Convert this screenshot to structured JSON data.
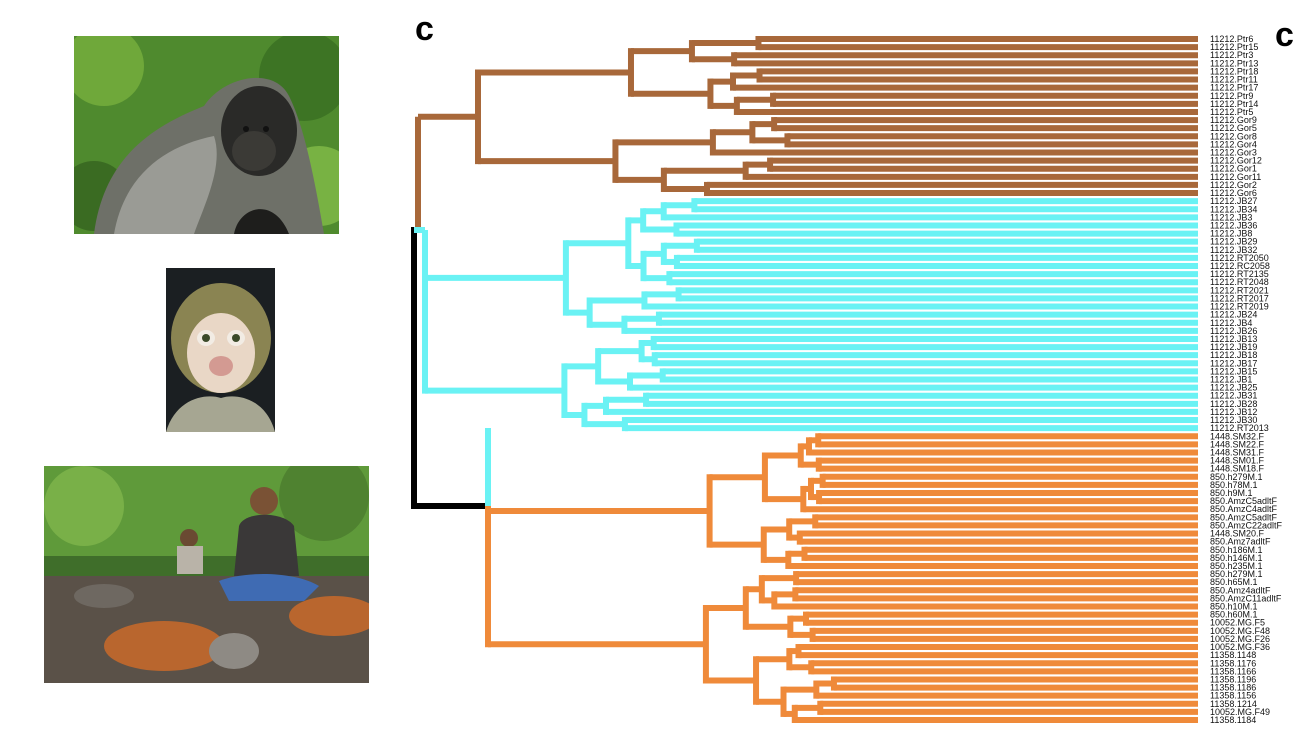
{
  "panel_label": "c",
  "next_panel_label": "c",
  "photos": [
    {
      "name": "gorilla-photo"
    },
    {
      "name": "macaque-photo"
    },
    {
      "name": "forest-people-photo"
    }
  ],
  "colors": {
    "gorilla_chimp_clade": "#a8683a",
    "macaque_clade": "#6af2f4",
    "human_clade": "#ef8a3a",
    "root": "#000000"
  },
  "tips": [
    {
      "label": "11212.Ptr6",
      "clade": "ape"
    },
    {
      "label": "11212.Ptr15",
      "clade": "ape"
    },
    {
      "label": "11212.Ptr3",
      "clade": "ape"
    },
    {
      "label": "11212.Ptr13",
      "clade": "ape"
    },
    {
      "label": "11212.Ptr18",
      "clade": "ape"
    },
    {
      "label": "11212.Ptr11",
      "clade": "ape"
    },
    {
      "label": "11212.Ptr17",
      "clade": "ape"
    },
    {
      "label": "11212.Ptr9",
      "clade": "ape"
    },
    {
      "label": "11212.Ptr14",
      "clade": "ape"
    },
    {
      "label": "11212.Ptr5",
      "clade": "ape"
    },
    {
      "label": "11212.Gor9",
      "clade": "ape"
    },
    {
      "label": "11212.Gor5",
      "clade": "ape"
    },
    {
      "label": "11212.Gor8",
      "clade": "ape"
    },
    {
      "label": "11212.Gor4",
      "clade": "ape"
    },
    {
      "label": "11212.Gor3",
      "clade": "ape"
    },
    {
      "label": "11212.Gor12",
      "clade": "ape"
    },
    {
      "label": "11212.Gor1",
      "clade": "ape"
    },
    {
      "label": "11212.Gor11",
      "clade": "ape"
    },
    {
      "label": "11212.Gor2",
      "clade": "ape"
    },
    {
      "label": "11212.Gor6",
      "clade": "ape"
    },
    {
      "label": "11212.JB27",
      "clade": "mac"
    },
    {
      "label": "11212.JB34",
      "clade": "mac"
    },
    {
      "label": "11212.JB3",
      "clade": "mac"
    },
    {
      "label": "11212.JB36",
      "clade": "mac"
    },
    {
      "label": "11212.JB8",
      "clade": "mac"
    },
    {
      "label": "11212.JB29",
      "clade": "mac"
    },
    {
      "label": "11212.JB32",
      "clade": "mac"
    },
    {
      "label": "11212.RT2050",
      "clade": "mac"
    },
    {
      "label": "11212.RC2058",
      "clade": "mac"
    },
    {
      "label": "11212.RT2135",
      "clade": "mac"
    },
    {
      "label": "11212.RT2048",
      "clade": "mac"
    },
    {
      "label": "11212.RT2021",
      "clade": "mac"
    },
    {
      "label": "11212.RT2017",
      "clade": "mac"
    },
    {
      "label": "11212.RT2019",
      "clade": "mac"
    },
    {
      "label": "11212.JB24",
      "clade": "mac"
    },
    {
      "label": "11212.JB4",
      "clade": "mac"
    },
    {
      "label": "11212.JB26",
      "clade": "mac"
    },
    {
      "label": "11212.JB13",
      "clade": "mac"
    },
    {
      "label": "11212.JB19",
      "clade": "mac"
    },
    {
      "label": "11212.JB18",
      "clade": "mac"
    },
    {
      "label": "11212.JB17",
      "clade": "mac"
    },
    {
      "label": "11212.JB15",
      "clade": "mac"
    },
    {
      "label": "11212.JB1",
      "clade": "mac"
    },
    {
      "label": "11212.JB25",
      "clade": "mac"
    },
    {
      "label": "11212.JB31",
      "clade": "mac"
    },
    {
      "label": "11212.JB28",
      "clade": "mac"
    },
    {
      "label": "11212.JB12",
      "clade": "mac"
    },
    {
      "label": "11212.JB30",
      "clade": "mac"
    },
    {
      "label": "11212.RT2013",
      "clade": "mac"
    },
    {
      "label": "1448.SM32.F",
      "clade": "hum"
    },
    {
      "label": "1448.SM22.F",
      "clade": "hum"
    },
    {
      "label": "1448.SM31.F",
      "clade": "hum"
    },
    {
      "label": "1448.SM01.F",
      "clade": "hum"
    },
    {
      "label": "1448.SM18.F",
      "clade": "hum"
    },
    {
      "label": "850.h279M.1",
      "clade": "hum"
    },
    {
      "label": "850.h78M.1",
      "clade": "hum"
    },
    {
      "label": "850.h9M.1",
      "clade": "hum"
    },
    {
      "label": "850.AmzC5adltF",
      "clade": "hum"
    },
    {
      "label": "850.AmzC4adltF",
      "clade": "hum"
    },
    {
      "label": "850.AmzC5adltF",
      "clade": "hum"
    },
    {
      "label": "850.AmzC22adltF",
      "clade": "hum"
    },
    {
      "label": "1448.SM20.F",
      "clade": "hum"
    },
    {
      "label": "850.Amz7adltF",
      "clade": "hum"
    },
    {
      "label": "850.h186M.1",
      "clade": "hum"
    },
    {
      "label": "850.h146M.1",
      "clade": "hum"
    },
    {
      "label": "850.h235M.1",
      "clade": "hum"
    },
    {
      "label": "850.h279M.1",
      "clade": "hum"
    },
    {
      "label": "850.h65M.1",
      "clade": "hum"
    },
    {
      "label": "850.Amz4adltF",
      "clade": "hum"
    },
    {
      "label": "850.AmzC11adltF",
      "clade": "hum"
    },
    {
      "label": "850.h10M.1",
      "clade": "hum"
    },
    {
      "label": "850.h60M.1",
      "clade": "hum"
    },
    {
      "label": "10052.MG.F5",
      "clade": "hum"
    },
    {
      "label": "10052.MG.F48",
      "clade": "hum"
    },
    {
      "label": "10052.MG.F26",
      "clade": "hum"
    },
    {
      "label": "10052.MG.F36",
      "clade": "hum"
    },
    {
      "label": "11358.1148",
      "clade": "hum"
    },
    {
      "label": "11358.1176",
      "clade": "hum"
    },
    {
      "label": "11358.1166",
      "clade": "hum"
    },
    {
      "label": "11358.1196",
      "clade": "hum"
    },
    {
      "label": "11358.1186",
      "clade": "hum"
    },
    {
      "label": "11358.1156",
      "clade": "hum"
    },
    {
      "label": "11358.1214",
      "clade": "hum"
    },
    {
      "label": "10052.MG.F49",
      "clade": "hum"
    },
    {
      "label": "11358.1184",
      "clade": "hum"
    }
  ]
}
